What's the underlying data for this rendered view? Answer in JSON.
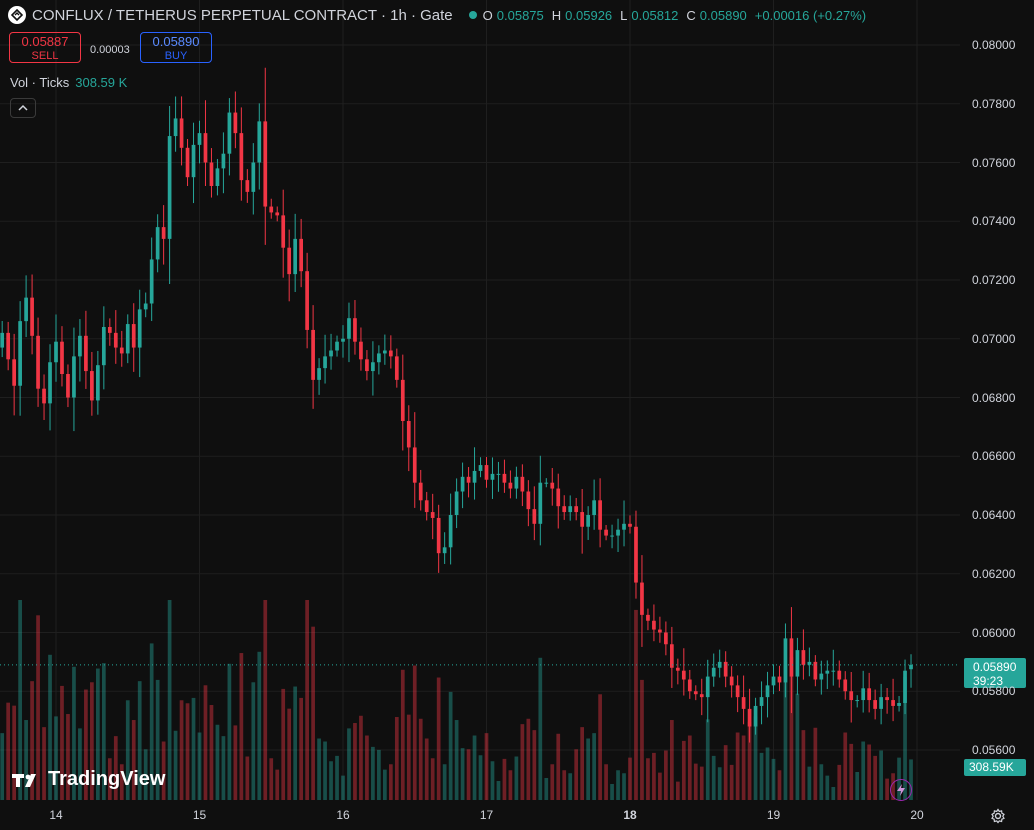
{
  "header": {
    "title": "CONFLUX / TETHERUS PERPETUAL CONTRACT · 1h · Gate",
    "ohlc": [
      {
        "k": "O",
        "v": "0.05875"
      },
      {
        "k": "H",
        "v": "0.05926"
      },
      {
        "k": "L",
        "v": "0.05812"
      },
      {
        "k": "C",
        "v": "0.05890"
      }
    ],
    "change": "+0.00016 (+0.27%)"
  },
  "trade": {
    "sell_price": "0.05887",
    "sell_label": "SELL",
    "spread": "0.00003",
    "buy_price": "0.05890",
    "buy_label": "BUY"
  },
  "volume_legend": {
    "label": "Vol · Ticks",
    "value": "308.59 K"
  },
  "collapse_glyph": "^",
  "brand": "TradingView",
  "price_tag": {
    "price": "0.05890",
    "countdown": "39:23"
  },
  "volume_tag": "308.59K",
  "colors": {
    "up": "#26a69a",
    "down": "#f23645",
    "bg": "#0f0f0f",
    "grid": "#1f1f1f"
  },
  "chart_data": {
    "type": "candlestick",
    "symbol": "CONFLUX / TETHERUS PERPETUAL CONTRACT",
    "interval": "1h",
    "exchange": "Gate",
    "ylim": [
      0.0552,
      0.0808
    ],
    "y_ticks": [
      "0.08000",
      "0.07800",
      "0.07600",
      "0.07400",
      "0.07200",
      "0.07000",
      "0.06800",
      "0.06600",
      "0.06400",
      "0.06200",
      "0.06000",
      "0.05800",
      "0.05600"
    ],
    "x_ticks": [
      {
        "label": "14",
        "bold": false
      },
      {
        "label": "15",
        "bold": false
      },
      {
        "label": "16",
        "bold": false
      },
      {
        "label": "17",
        "bold": false
      },
      {
        "label": "18",
        "bold": true
      },
      {
        "label": "19",
        "bold": false
      },
      {
        "label": "20",
        "bold": false
      }
    ],
    "first_bar_hour_offset": -13,
    "close_series": [
      0.0672,
      0.0678,
      0.0685,
      0.0697,
      0.0702,
      0.0693,
      0.0684,
      0.0706,
      0.0714,
      0.0701,
      0.0683,
      0.0678,
      0.0692,
      0.0699,
      0.0688,
      0.068,
      0.0694,
      0.0701,
      0.0689,
      0.0679,
      0.0691,
      0.0704,
      0.0702,
      0.0697,
      0.0695,
      0.0705,
      0.0697,
      0.071,
      0.0712,
      0.0727,
      0.0738,
      0.0734,
      0.0769,
      0.0775,
      0.0765,
      0.0755,
      0.0766,
      0.077,
      0.076,
      0.0752,
      0.0758,
      0.0763,
      0.0777,
      0.077,
      0.0754,
      0.075,
      0.076,
      0.0774,
      0.0745,
      0.0743,
      0.0742,
      0.0731,
      0.0722,
      0.0734,
      0.0723,
      0.0703,
      0.0686,
      0.069,
      0.0694,
      0.0696,
      0.0699,
      0.07,
      0.0707,
      0.0699,
      0.0693,
      0.0689,
      0.0692,
      0.0695,
      0.0696,
      0.0694,
      0.0686,
      0.0672,
      0.0663,
      0.0651,
      0.0645,
      0.0641,
      0.0639,
      0.0627,
      0.0629,
      0.064,
      0.0648,
      0.0653,
      0.0651,
      0.0655,
      0.0657,
      0.0652,
      0.0654,
      0.0654,
      0.0651,
      0.0649,
      0.0653,
      0.0648,
      0.0642,
      0.0637,
      0.0651,
      0.0651,
      0.0649,
      0.0643,
      0.0641,
      0.0643,
      0.0641,
      0.0636,
      0.064,
      0.0645,
      0.0635,
      0.0633,
      0.0633,
      0.0635,
      0.0637,
      0.0636,
      0.0617,
      0.0606,
      0.0604,
      0.0601,
      0.06,
      0.0596,
      0.0588,
      0.0587,
      0.0584,
      0.058,
      0.0579,
      0.0578,
      0.0585,
      0.0588,
      0.059,
      0.0585,
      0.0582,
      0.0578,
      0.0574,
      0.0568,
      0.0575,
      0.0578,
      0.0582,
      0.0585,
      0.0583,
      0.0598,
      0.0585,
      0.0594,
      0.0589,
      0.059,
      0.0584,
      0.0586,
      0.0587,
      0.0587,
      0.0584,
      0.058,
      0.0577,
      0.0577,
      0.0581,
      0.0577,
      0.0574,
      0.0578,
      0.0577,
      0.0575,
      0.0576,
      0.0587,
      0.0589
    ],
    "last": {
      "open": 0.05875,
      "high": 0.05926,
      "low": 0.05812,
      "close": 0.0589
    }
  }
}
